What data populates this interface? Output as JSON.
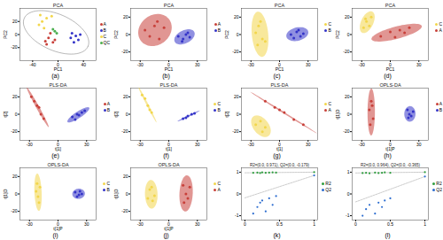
{
  "chart_data": [
    {
      "type": "scatter",
      "title": "PCA",
      "caption": "(a)",
      "x_label": "PC1",
      "y_label": "PC2",
      "xlim": [
        -60,
        60
      ],
      "xticks": [
        -40,
        0,
        40
      ],
      "ylim": [
        -40,
        40
      ],
      "yticks": [
        -20,
        0,
        20
      ],
      "series": [
        {
          "name": "A",
          "color": "#c8403a",
          "values": [
            [
              -15,
              -5
            ],
            [
              -8,
              -12
            ],
            [
              -20,
              -10
            ],
            [
              -12,
              2
            ],
            [
              -5,
              -8
            ],
            [
              -18,
              -15
            ]
          ]
        },
        {
          "name": "B",
          "color": "#3434c8",
          "values": [
            [
              20,
              -5
            ],
            [
              28,
              -2
            ],
            [
              32,
              -8
            ],
            [
              25,
              -12
            ],
            [
              35,
              0
            ],
            [
              22,
              2
            ]
          ]
        },
        {
          "name": "C",
          "color": "#f2d64b",
          "values": [
            [
              -25,
              20
            ],
            [
              -18,
              25
            ],
            [
              -30,
              15
            ],
            [
              -10,
              28
            ],
            [
              -22,
              10
            ],
            [
              -28,
              30
            ]
          ]
        },
        {
          "name": "QC",
          "color": "#4caf50",
          "values": [
            [
              -5,
              5
            ],
            [
              -2,
              2
            ],
            [
              -8,
              8
            ]
          ]
        }
      ]
    },
    {
      "type": "cluster",
      "title": "PCA",
      "caption": "(b)",
      "x_label": "PC1",
      "y_label": "PC2",
      "xlim": [
        -40,
        40
      ],
      "xticks": [
        -30,
        0,
        30
      ],
      "ylim": [
        -30,
        30
      ],
      "yticks": [
        -20,
        0,
        20
      ],
      "series": [
        {
          "name": "A",
          "color": "#c8403a",
          "values": [
            [
              -25,
              5
            ],
            [
              -15,
              10
            ],
            [
              -10,
              -5
            ],
            [
              -20,
              -2
            ],
            [
              -5,
              8
            ],
            [
              -12,
              15
            ]
          ]
        },
        {
          "name": "B",
          "color": "#3434c8",
          "values": [
            [
              10,
              -2
            ],
            [
              15,
              -5
            ],
            [
              18,
              0
            ],
            [
              22,
              -3
            ],
            [
              14,
              -8
            ],
            [
              20,
              2
            ]
          ]
        }
      ]
    },
    {
      "type": "cluster",
      "title": "PCA",
      "caption": "(c)",
      "x_label": "PC1",
      "y_label": "PC2",
      "xlim": [
        -40,
        40
      ],
      "xticks": [
        -30,
        0,
        30
      ],
      "ylim": [
        -30,
        30
      ],
      "yticks": [
        -20,
        0,
        20
      ],
      "series": [
        {
          "name": "C",
          "color": "#f2d64b",
          "values": [
            [
              -22,
              10
            ],
            [
              -18,
              -5
            ],
            [
              -25,
              2
            ],
            [
              -20,
              15
            ],
            [
              -15,
              -8
            ],
            [
              -23,
              -12
            ]
          ]
        },
        {
          "name": "B",
          "color": "#3434c8",
          "values": [
            [
              12,
              0
            ],
            [
              18,
              3
            ],
            [
              22,
              -2
            ],
            [
              15,
              -4
            ],
            [
              25,
              1
            ],
            [
              20,
              5
            ]
          ]
        }
      ]
    },
    {
      "type": "cluster",
      "title": "PCA",
      "caption": "(d)",
      "x_label": "PC1",
      "y_label": "PC2",
      "xlim": [
        -40,
        40
      ],
      "xticks": [
        -30,
        0,
        30
      ],
      "ylim": [
        -30,
        30
      ],
      "yticks": [
        -20,
        0,
        20
      ],
      "series": [
        {
          "name": "C",
          "color": "#f2d64b",
          "values": [
            [
              -25,
              15
            ],
            [
              -22,
              10
            ],
            [
              -28,
              8
            ],
            [
              -20,
              20
            ],
            [
              -26,
              18
            ]
          ]
        },
        {
          "name": "A",
          "color": "#c8403a",
          "values": [
            [
              -10,
              -2
            ],
            [
              0,
              3
            ],
            [
              10,
              5
            ],
            [
              20,
              8
            ],
            [
              5,
              -3
            ],
            [
              15,
              2
            ]
          ]
        }
      ]
    },
    {
      "type": "cluster",
      "title": "PLS-DA",
      "caption": "(e)",
      "x_label": "t[1]",
      "y_label": "t[2]",
      "xlim": [
        -40,
        40
      ],
      "xticks": [
        -30,
        0,
        30
      ],
      "ylim": [
        -30,
        30
      ],
      "yticks": [
        -20,
        0,
        20
      ],
      "series": [
        {
          "name": "A",
          "color": "#c8403a",
          "values": [
            [
              -25,
              15
            ],
            [
              -20,
              8
            ],
            [
              -18,
              0
            ],
            [
              -28,
              20
            ],
            [
              -15,
              -5
            ],
            [
              -22,
              10
            ]
          ]
        },
        {
          "name": "B",
          "color": "#3434c8",
          "values": [
            [
              15,
              -3
            ],
            [
              20,
              0
            ],
            [
              25,
              2
            ],
            [
              18,
              -6
            ],
            [
              28,
              4
            ],
            [
              22,
              -1
            ]
          ]
        }
      ]
    },
    {
      "type": "cluster",
      "title": "PLS-DA",
      "caption": "(f)",
      "x_label": "t[1]",
      "y_label": "t[2]",
      "xlim": [
        -40,
        40
      ],
      "xticks": [
        -30,
        0,
        30
      ],
      "ylim": [
        -30,
        30
      ],
      "yticks": [
        -20,
        0,
        20
      ],
      "series": [
        {
          "name": "C",
          "color": "#f2d64b",
          "values": [
            [
              -25,
              18
            ],
            [
              -22,
              10
            ],
            [
              -18,
              2
            ],
            [
              -28,
              22
            ],
            [
              -20,
              5
            ]
          ]
        },
        {
          "name": "B",
          "color": "#3434c8",
          "values": [
            [
              15,
              -5
            ],
            [
              20,
              -2
            ],
            [
              24,
              0
            ],
            [
              18,
              -4
            ],
            [
              27,
              1
            ]
          ]
        }
      ]
    },
    {
      "type": "cluster",
      "title": "PLS-DA",
      "caption": "(g)",
      "x_label": "t[1]",
      "y_label": "t[2]",
      "xlim": [
        -40,
        40
      ],
      "xticks": [
        -30,
        0,
        30
      ],
      "ylim": [
        -30,
        30
      ],
      "yticks": [
        -20,
        0,
        20
      ],
      "series": [
        {
          "name": "C",
          "color": "#f2d64b",
          "values": [
            [
              -20,
              -8
            ],
            [
              -15,
              -15
            ],
            [
              -25,
              -12
            ],
            [
              -18,
              -20
            ]
          ]
        },
        {
          "name": "A",
          "color": "#c8403a",
          "values": [
            [
              -15,
              15
            ],
            [
              -5,
              8
            ],
            [
              5,
              2
            ],
            [
              15,
              -6
            ],
            [
              25,
              -12
            ],
            [
              0,
              5
            ]
          ]
        }
      ]
    },
    {
      "type": "cluster",
      "title": "OPLS-DA",
      "caption": "(h)",
      "x_label": "t[1]P",
      "y_label": "t[1]O",
      "xlim": [
        -40,
        40
      ],
      "xticks": [
        -30,
        0,
        30
      ],
      "ylim": [
        -30,
        30
      ],
      "yticks": [
        -20,
        0,
        20
      ],
      "series": [
        {
          "name": "A",
          "color": "#c8403a",
          "values": [
            [
              -20,
              15
            ],
            [
              -22,
              5
            ],
            [
              -18,
              -5
            ],
            [
              -21,
              -12
            ],
            [
              -19,
              10
            ]
          ]
        },
        {
          "name": "B",
          "color": "#3434c8",
          "values": [
            [
              18,
              5
            ],
            [
              22,
              -2
            ],
            [
              20,
              0
            ],
            [
              24,
              3
            ],
            [
              19,
              -4
            ]
          ]
        }
      ]
    },
    {
      "type": "cluster",
      "title": "OPLS-DA",
      "caption": "(i)",
      "x_label": "t[1]P",
      "y_label": "t[1]O",
      "xlim": [
        -40,
        40
      ],
      "xticks": [
        -30,
        0,
        30
      ],
      "ylim": [
        -30,
        30
      ],
      "yticks": [
        -20,
        0,
        20
      ],
      "series": [
        {
          "name": "C",
          "color": "#f2d64b",
          "values": [
            [
              -22,
              12
            ],
            [
              -20,
              -10
            ],
            [
              -23,
              3
            ],
            [
              -21,
              -3
            ],
            [
              -19,
              8
            ]
          ]
        },
        {
          "name": "B",
          "color": "#3434c8",
          "values": [
            [
              18,
              2
            ],
            [
              22,
              -1
            ],
            [
              25,
              0
            ],
            [
              20,
              -3
            ],
            [
              23,
              3
            ]
          ]
        }
      ]
    },
    {
      "type": "cluster",
      "title": "OPLS-DA",
      "caption": "(j)",
      "x_label": "t[1]P",
      "y_label": "t[1]O",
      "xlim": [
        -40,
        40
      ],
      "xticks": [
        -30,
        0,
        30
      ],
      "ylim": [
        -30,
        30
      ],
      "yticks": [
        -20,
        0,
        20
      ],
      "series": [
        {
          "name": "C",
          "color": "#f2d64b",
          "values": [
            [
              -18,
              8
            ],
            [
              -22,
              -5
            ],
            [
              -15,
              -2
            ],
            [
              -20,
              5
            ],
            [
              -17,
              -8
            ]
          ]
        },
        {
          "name": "A",
          "color": "#c8403a",
          "values": [
            [
              15,
              10
            ],
            [
              20,
              -5
            ],
            [
              18,
              0
            ],
            [
              22,
              8
            ],
            [
              16,
              -10
            ]
          ]
        }
      ]
    },
    {
      "type": "permutation",
      "annotation": "R2=(0.0, 0.971), Q2=(0.0, -0.179)",
      "caption": "(k)",
      "xlim": [
        -0.05,
        1.05
      ],
      "xticks": [
        0,
        0.5,
        1
      ],
      "ylim": [
        -1.2,
        1.2
      ],
      "yticks": [
        -1,
        0,
        1
      ],
      "series": [
        {
          "name": "R2",
          "color": "#2e9e3e",
          "intercept": 0.971,
          "values": [
            [
              0.12,
              0.97
            ],
            [
              0.18,
              0.98
            ],
            [
              0.22,
              0.96
            ],
            [
              0.25,
              0.99
            ],
            [
              0.3,
              0.97
            ],
            [
              0.35,
              0.98
            ],
            [
              0.4,
              0.99
            ],
            [
              0.45,
              0.98
            ],
            [
              1,
              1
            ]
          ]
        },
        {
          "name": "Q2",
          "color": "#2b6cd0",
          "intercept": -0.179,
          "values": [
            [
              0.12,
              -0.9
            ],
            [
              0.18,
              -0.6
            ],
            [
              0.22,
              -0.4
            ],
            [
              0.25,
              -0.3
            ],
            [
              0.3,
              -0.8
            ],
            [
              0.35,
              -0.2
            ],
            [
              0.4,
              -0.5
            ],
            [
              0.45,
              -0.1
            ],
            [
              1,
              0.85
            ]
          ]
        }
      ]
    },
    {
      "type": "permutation",
      "annotation": "R2=(0.0, 0.964), Q2=(0.0, -0.365)",
      "caption": "(l)",
      "xlim": [
        -0.05,
        1.05
      ],
      "xticks": [
        0,
        0.5,
        1
      ],
      "ylim": [
        -1.2,
        1.2
      ],
      "yticks": [
        -1,
        0,
        1
      ],
      "series": [
        {
          "name": "R2",
          "color": "#2e9e3e",
          "intercept": 0.964,
          "values": [
            [
              0.1,
              0.96
            ],
            [
              0.15,
              0.97
            ],
            [
              0.2,
              0.95
            ],
            [
              0.28,
              0.98
            ],
            [
              0.33,
              0.96
            ],
            [
              0.38,
              0.97
            ],
            [
              0.42,
              0.99
            ],
            [
              0.5,
              0.97
            ],
            [
              1,
              1
            ]
          ]
        },
        {
          "name": "Q2",
          "color": "#2b6cd0",
          "intercept": -0.365,
          "values": [
            [
              0.1,
              -1
            ],
            [
              0.15,
              -0.7
            ],
            [
              0.2,
              -0.5
            ],
            [
              0.28,
              -0.9
            ],
            [
              0.33,
              -0.4
            ],
            [
              0.38,
              -0.6
            ],
            [
              0.42,
              -0.3
            ],
            [
              0.5,
              -0.2
            ],
            [
              1,
              0.8
            ]
          ]
        }
      ]
    }
  ]
}
